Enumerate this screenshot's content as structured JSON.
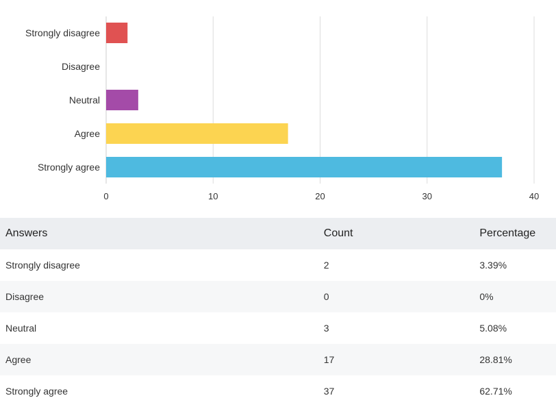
{
  "chart_data": {
    "type": "bar",
    "orientation": "horizontal",
    "categories": [
      "Strongly disagree",
      "Disagree",
      "Neutral",
      "Agree",
      "Strongly agree"
    ],
    "values": [
      2,
      0,
      3,
      17,
      37
    ],
    "colors": [
      "#e05252",
      "#e8a33d",
      "#a44ba8",
      "#fcd451",
      "#4ebae0"
    ],
    "xlim": [
      0,
      40
    ],
    "xticks": [
      "0",
      "10",
      "20",
      "30",
      "40"
    ],
    "grid": true,
    "title": "",
    "xlabel": "",
    "ylabel": ""
  },
  "table": {
    "headers": {
      "answers": "Answers",
      "count": "Count",
      "percentage": "Percentage"
    },
    "rows": [
      {
        "answer": "Strongly disagree",
        "count": "2",
        "percentage": "3.39%"
      },
      {
        "answer": "Disagree",
        "count": "0",
        "percentage": "0%"
      },
      {
        "answer": "Neutral",
        "count": "3",
        "percentage": "5.08%"
      },
      {
        "answer": "Agree",
        "count": "17",
        "percentage": "28.81%"
      },
      {
        "answer": "Strongly agree",
        "count": "37",
        "percentage": "62.71%"
      }
    ]
  }
}
